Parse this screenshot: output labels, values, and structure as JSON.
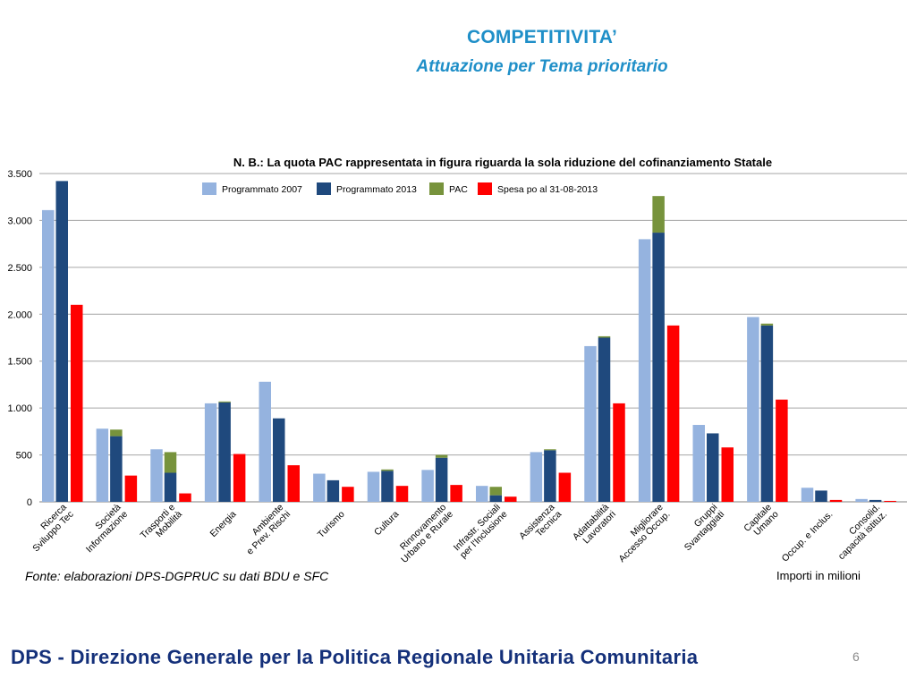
{
  "slide": {
    "title": "COMPETITIVITA’",
    "subtitle": "Attuazione per Tema prioritario",
    "source": "Fonte: elaborazioni DPS-DGPRUC su dati BDU e SFC",
    "units": "Importi in milioni",
    "footer": "DPS - Direzione Generale per la Politica Regionale Unitaria Comunitaria",
    "page_number": "6"
  },
  "colors": {
    "programmato_2007": "#95b3df",
    "programmato_2013": "#1f497d",
    "pac": "#77933c",
    "spesa": "#ff0000",
    "title": "#1f8fc8",
    "footer": "#14307a",
    "gridline": "#a6a6a6"
  },
  "chart_data": {
    "type": "bar",
    "title": "N. B.: La quota PAC rappresentata in figura riguarda la sola riduzione del cofinanziamento Statale",
    "ylim": [
      0,
      3500
    ],
    "y_ticks": [
      0,
      500,
      1000,
      1500,
      2000,
      2500,
      3000,
      3500
    ],
    "y_tick_labels": [
      "0",
      "500",
      "1.000",
      "1.500",
      "2.000",
      "2.500",
      "3.000",
      "3.500"
    ],
    "grid": true,
    "legend_position": "top",
    "legend": [
      "Programmato 2007",
      "Programmato 2013",
      "PAC",
      "Spesa po al 31-08-2013"
    ],
    "categories": [
      [
        "Ricerca",
        "Sviluppo Tec"
      ],
      [
        "Società",
        "Informazione"
      ],
      [
        "Trasporti e",
        "Mobilità"
      ],
      [
        "Energia"
      ],
      [
        "Ambiente",
        "e Prev. Rischi"
      ],
      [
        "Turismo"
      ],
      [
        "Cultura"
      ],
      [
        "Rinnovamento",
        "Urbano e Rurale"
      ],
      [
        "Infrastr. Sociali",
        "per l'Inclusione"
      ],
      [
        "Assistenza",
        "Tecnica"
      ],
      [
        "Adattabilità",
        "Lavoratori"
      ],
      [
        "Migliorare",
        "Accesso Occup."
      ],
      [
        "Gruppi",
        "Svantaggiati"
      ],
      [
        "Capitale",
        "Umano"
      ],
      [
        "Occup. e Inclus."
      ],
      [
        "Consolid.",
        "capacità istituz."
      ]
    ],
    "series": [
      {
        "name": "Programmato 2007",
        "values": [
          3110,
          780,
          560,
          1050,
          1280,
          300,
          320,
          340,
          170,
          530,
          1660,
          2800,
          820,
          1970,
          150,
          30
        ]
      },
      {
        "name": "Programmato 2013",
        "values": [
          3420,
          700,
          310,
          1060,
          890,
          230,
          330,
          470,
          70,
          550,
          1750,
          2870,
          730,
          1880,
          120,
          20
        ]
      },
      {
        "name": "PAC",
        "values": [
          0,
          70,
          220,
          10,
          0,
          0,
          15,
          30,
          90,
          10,
          15,
          390,
          0,
          20,
          0,
          0
        ]
      },
      {
        "name": "Spesa po al 31-08-2013",
        "values": [
          2100,
          280,
          90,
          510,
          390,
          160,
          170,
          180,
          55,
          310,
          1050,
          1880,
          580,
          1090,
          20,
          10
        ]
      }
    ]
  }
}
